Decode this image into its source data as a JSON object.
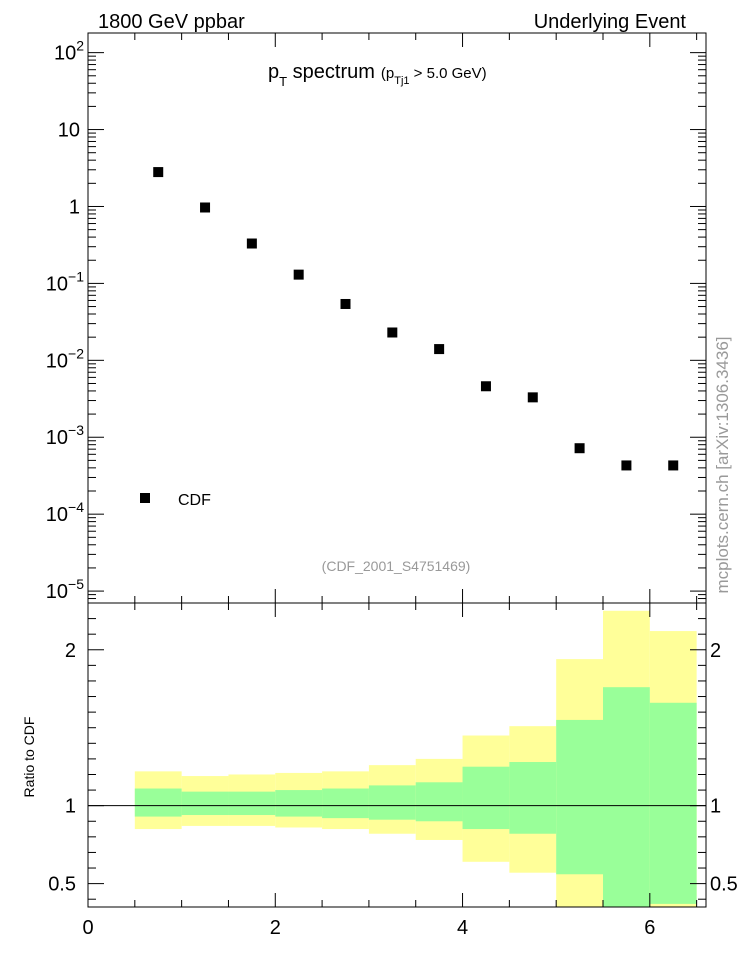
{
  "header": {
    "left_label": "1800 GeV ppbar",
    "right_label": "Underlying Event"
  },
  "plot_title": {
    "main": "p",
    "main_sub": "T",
    "main_tail": " spectrum",
    "cut_open": "(p",
    "cut_sub": "Tj1",
    "cut_tail": " > 5.0 GeV)"
  },
  "analysis_id": "(CDF_2001_S4751469)",
  "side_label": "mcplots.cern.ch [arXiv:1306.3436]",
  "ratio_ylabel": "Ratio to CDF",
  "colors": {
    "band_outer": "#ffff99",
    "band_inner": "#99ff99",
    "marker": "#000000",
    "muted_text": "#999999"
  },
  "chart_data": [
    {
      "type": "scatter",
      "log_y": true,
      "ylim": [
        7e-06,
        180
      ],
      "xlim": [
        0,
        6.6
      ],
      "marker": "filled-square",
      "legend": {
        "entries": [
          "CDF"
        ],
        "position": "bottom-left"
      },
      "y_ticks": [
        {
          "value": 1e-05,
          "base": "10",
          "exp": "−5"
        },
        {
          "value": 0.0001,
          "base": "10",
          "exp": "−4"
        },
        {
          "value": 0.001,
          "base": "10",
          "exp": "−3"
        },
        {
          "value": 0.01,
          "base": "10",
          "exp": "−2"
        },
        {
          "value": 0.1,
          "base": "10",
          "exp": "−1"
        },
        {
          "value": 1,
          "base": "1",
          "exp": ""
        },
        {
          "value": 10,
          "base": "10",
          "exp": ""
        },
        {
          "value": 100,
          "base": "10",
          "exp": "2"
        }
      ],
      "series": [
        {
          "name": "CDF",
          "x": [
            0.75,
            1.25,
            1.75,
            2.25,
            2.75,
            3.25,
            3.75,
            4.25,
            4.75,
            5.25,
            5.75,
            6.25
          ],
          "y": [
            2.8,
            0.97,
            0.33,
            0.13,
            0.054,
            0.023,
            0.014,
            0.0046,
            0.0033,
            0.00072,
            0.00043,
            0.00043
          ]
        }
      ]
    },
    {
      "type": "area",
      "xlim": [
        0,
        6.6
      ],
      "ylim": [
        0.35,
        2.3
      ],
      "ylabel": "Ratio to CDF",
      "reference_line": 1,
      "y_ticks": [
        {
          "value": 0.5,
          "label": "0.5"
        },
        {
          "value": 1,
          "label": "1"
        },
        {
          "value": 2,
          "label": "2"
        }
      ],
      "x_ticks": [
        {
          "value": 0,
          "label": "0"
        },
        {
          "value": 2,
          "label": "2"
        },
        {
          "value": 4,
          "label": "4"
        },
        {
          "value": 6,
          "label": "6"
        }
      ],
      "bin_edges": [
        0.5,
        1.0,
        1.5,
        2.0,
        2.5,
        3.0,
        3.5,
        4.0,
        4.5,
        5.0,
        5.5,
        6.0,
        6.5
      ],
      "bands": [
        {
          "name": "outer",
          "lo": [
            0.85,
            0.87,
            0.87,
            0.86,
            0.85,
            0.82,
            0.78,
            0.64,
            0.57,
            0.35,
            0.35,
            0.35
          ],
          "hi": [
            1.22,
            1.19,
            1.2,
            1.21,
            1.22,
            1.26,
            1.3,
            1.45,
            1.51,
            1.94,
            2.25,
            2.12
          ]
        },
        {
          "name": "inner",
          "lo": [
            0.93,
            0.94,
            0.94,
            0.93,
            0.92,
            0.91,
            0.9,
            0.85,
            0.82,
            0.56,
            0.35,
            0.37
          ],
          "hi": [
            1.11,
            1.09,
            1.09,
            1.1,
            1.11,
            1.13,
            1.15,
            1.25,
            1.28,
            1.55,
            1.76,
            1.66
          ]
        }
      ]
    }
  ]
}
